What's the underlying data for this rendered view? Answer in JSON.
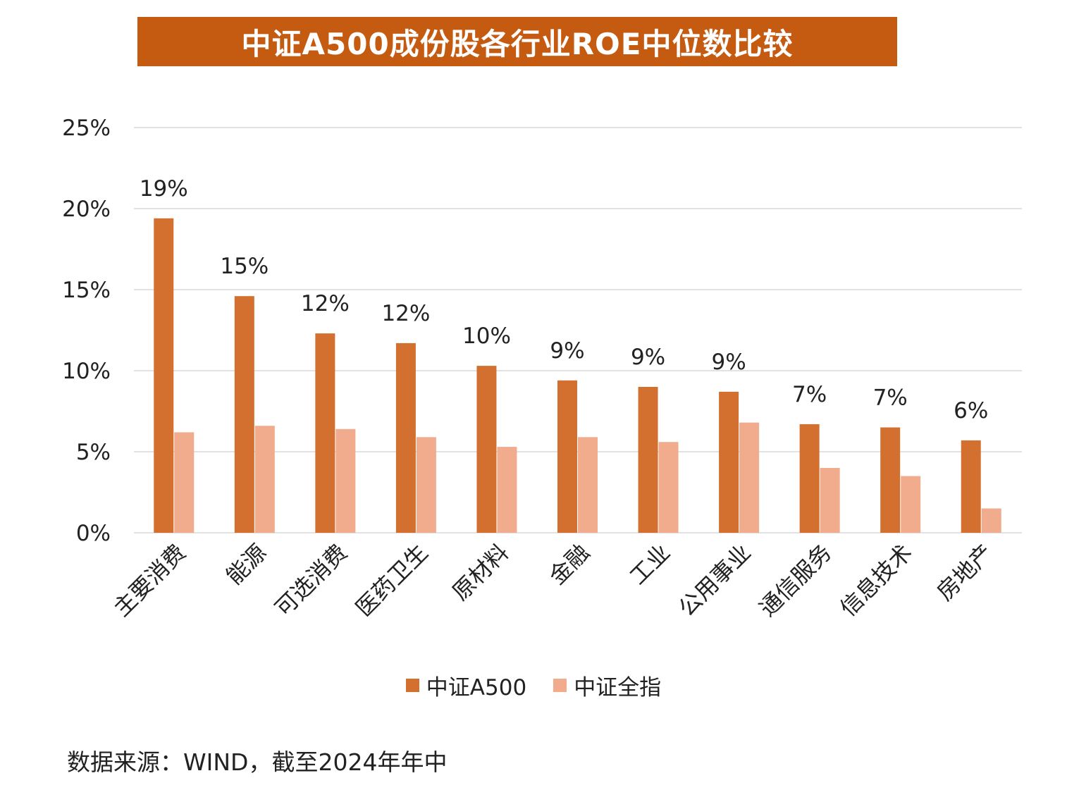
{
  "colors": {
    "banner": "#c55a11",
    "series_a500": "#d3702f",
    "series_all": "#f0ac8d",
    "grid": "#d9d9d9"
  },
  "chart_data": {
    "type": "bar",
    "title": "中证A500成份股各行业ROE中位数比较",
    "categories": [
      "主要消费",
      "能源",
      "可选消费",
      "医药卫生",
      "原材料",
      "金融",
      "工业",
      "公用事业",
      "通信服务",
      "信息技术",
      "房地产"
    ],
    "series": [
      {
        "name": "中证A500",
        "values": [
          19.4,
          14.6,
          12.3,
          11.7,
          10.3,
          9.4,
          9.0,
          8.7,
          6.7,
          6.5,
          5.7
        ],
        "data_labels": [
          "19%",
          "15%",
          "12%",
          "12%",
          "10%",
          "9%",
          "9%",
          "9%",
          "7%",
          "7%",
          "6%"
        ]
      },
      {
        "name": "中证全指",
        "values": [
          6.2,
          6.6,
          6.4,
          5.9,
          5.3,
          5.9,
          5.6,
          6.8,
          4.0,
          3.5,
          1.5
        ]
      }
    ],
    "ylim": [
      0,
      25
    ],
    "yticks": [
      "0%",
      "5%",
      "10%",
      "15%",
      "20%",
      "25%"
    ],
    "grid": true,
    "legend": "bottom"
  },
  "source_note": "数据来源：WIND，截至2024年年中"
}
